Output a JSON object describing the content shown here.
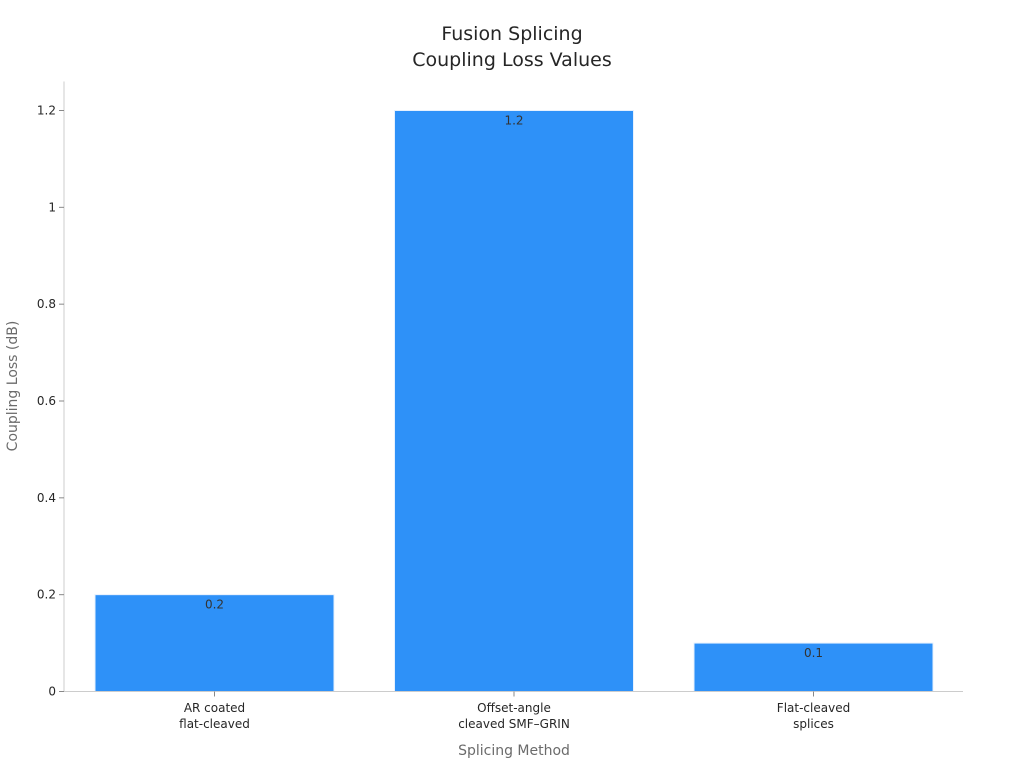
{
  "chart_data": {
    "type": "bar",
    "title_lines": [
      "Fusion Splicing",
      "Coupling Loss Values"
    ],
    "xlabel": "Splicing Method",
    "ylabel": "Coupling Loss (dB)",
    "categories": [
      [
        "AR coated",
        "flat-cleaved"
      ],
      [
        "Offset-angle",
        "cleaved SMF–GRIN"
      ],
      [
        "Flat-cleaved",
        "splices"
      ]
    ],
    "values": [
      0.2,
      1.2,
      0.1
    ],
    "value_labels": [
      "0.2",
      "1.2",
      "0.1"
    ],
    "ylim": [
      0,
      1.26
    ],
    "yticks": [
      0,
      0.2,
      0.4,
      0.6,
      0.8,
      1,
      1.2
    ],
    "ytick_labels": [
      "0",
      "0.2",
      "0.4",
      "0.6",
      "0.8",
      "1",
      "1.2"
    ],
    "grid": false,
    "legend": "none",
    "colors": {
      "bar": "#2e91f8",
      "bar_edge": "#e6f1fe",
      "axis": "#cccccc",
      "text": "#262626"
    }
  }
}
